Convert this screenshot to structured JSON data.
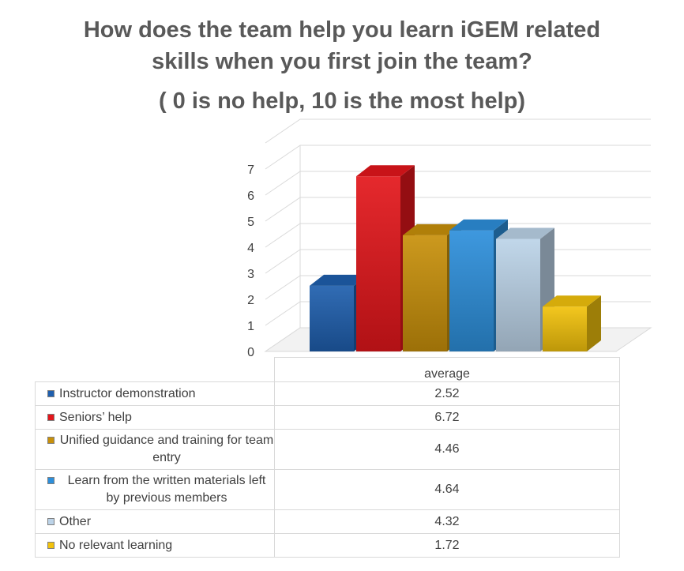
{
  "chart_data": {
    "type": "bar",
    "title": [
      "How does the team help you learn iGEM related",
      "skills when you first join the team?"
    ],
    "subtitle": "( 0 is no help, 10 is the most help)",
    "categories": [
      "average"
    ],
    "ylim": [
      0,
      7
    ],
    "yticks": [
      "0",
      "1",
      "2",
      "3",
      "4",
      "5",
      "6",
      "7"
    ],
    "grid": true,
    "legend": "table-below",
    "series": [
      {
        "name": "Instructor demonstration",
        "value": 2.52,
        "display": "2.52",
        "color": "#1f5fae"
      },
      {
        "name": "Seniors’ help",
        "value": 6.72,
        "display": "6.72",
        "color": "#e3161b"
      },
      {
        "name": "Unified guidance and training for team entry",
        "value": 4.46,
        "display": "4.46",
        "color": "#c8900a"
      },
      {
        "name": "Learn from the written materials left by previous members",
        "value": 4.64,
        "display": "4.64",
        "color": "#2d8fdb"
      },
      {
        "name": "Other",
        "value": 4.32,
        "display": "4.32",
        "color": "#bcd3e8"
      },
      {
        "name": "No relevant learning",
        "value": 1.72,
        "display": "1.72",
        "color": "#f2c20c"
      }
    ]
  }
}
